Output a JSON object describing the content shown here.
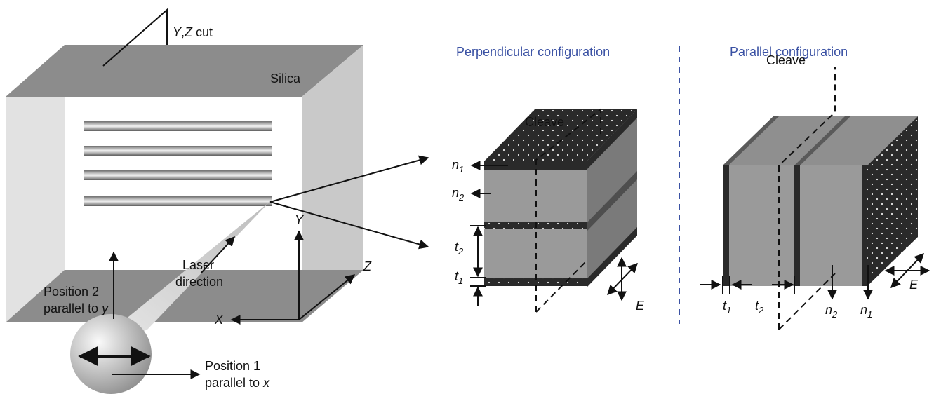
{
  "left": {
    "cut": {
      "y": "Y",
      "sep": ",",
      "z": "Z",
      "suffix": " cut"
    },
    "silica": "Silica",
    "laser": [
      "Laser",
      "direction"
    ],
    "pos2": [
      "Position 2",
      "parallel to ",
      "y"
    ],
    "pos1": [
      "Position 1",
      "parallel to ",
      "x"
    ],
    "axes": {
      "x": "X",
      "y": "Y",
      "z": "Z"
    }
  },
  "perp": {
    "title": "Perpendicular configuration",
    "cleave": "Cleave",
    "n1": {
      "base": "n",
      "sub": "1"
    },
    "n2": {
      "base": "n",
      "sub": "2"
    },
    "t2": {
      "base": "t",
      "sub": "2"
    },
    "t1": {
      "base": "t",
      "sub": "1"
    },
    "e": "E"
  },
  "par": {
    "title": "Parallel configuration",
    "cleave": "Cleave",
    "t1": {
      "base": "t",
      "sub": "1"
    },
    "t2": {
      "base": "t",
      "sub": "2"
    },
    "n2": {
      "base": "n",
      "sub": "2"
    },
    "n1": {
      "base": "n",
      "sub": "1"
    },
    "e": "E"
  },
  "colors": {
    "frame_top": "#8c8c8c",
    "frame_side": "#c8c8c8",
    "frame_front": "#e0e0e0",
    "dark_layer": "#2a2a2a",
    "block_front": "#9a9a9a",
    "block_side": "#7a7a7a",
    "title_blue": "#3b52a4"
  }
}
